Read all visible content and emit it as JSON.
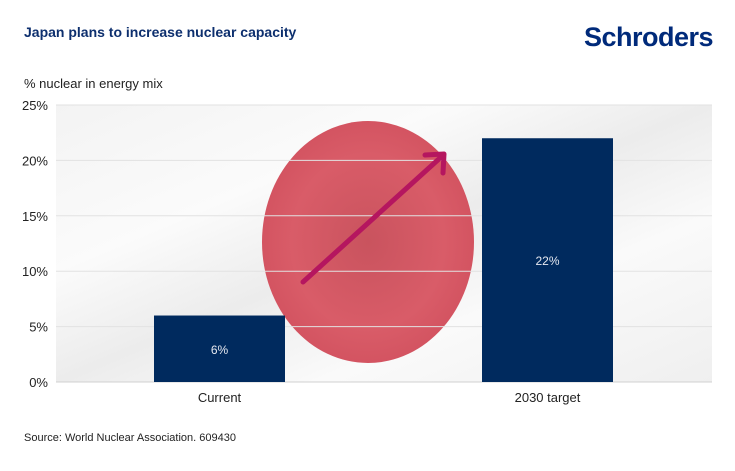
{
  "header": {
    "title": "Japan plans to increase nuclear capacity",
    "logo": "Schroders"
  },
  "footer": {
    "source": "Source: World Nuclear Association. 609430"
  },
  "colors": {
    "bar": "#002a5e",
    "arrow": "#b5165f",
    "flag_circle": "#d9525f",
    "title": "#0d2f6e"
  },
  "chart_data": {
    "type": "bar",
    "title": "Japan plans to increase nuclear capacity",
    "xlabel": "",
    "ylabel": "% nuclear in energy mix",
    "ylim": [
      0,
      25
    ],
    "yticks": [
      0,
      5,
      10,
      15,
      20,
      25
    ],
    "ytick_labels": [
      "0%",
      "5%",
      "10%",
      "15%",
      "20%",
      "25%"
    ],
    "categories": [
      "Current",
      "2030 target"
    ],
    "values": [
      6,
      22
    ],
    "data_labels": [
      "6%",
      "22%"
    ],
    "grid": true,
    "annotations": [
      "upward arrow over Japanese flag background"
    ]
  }
}
